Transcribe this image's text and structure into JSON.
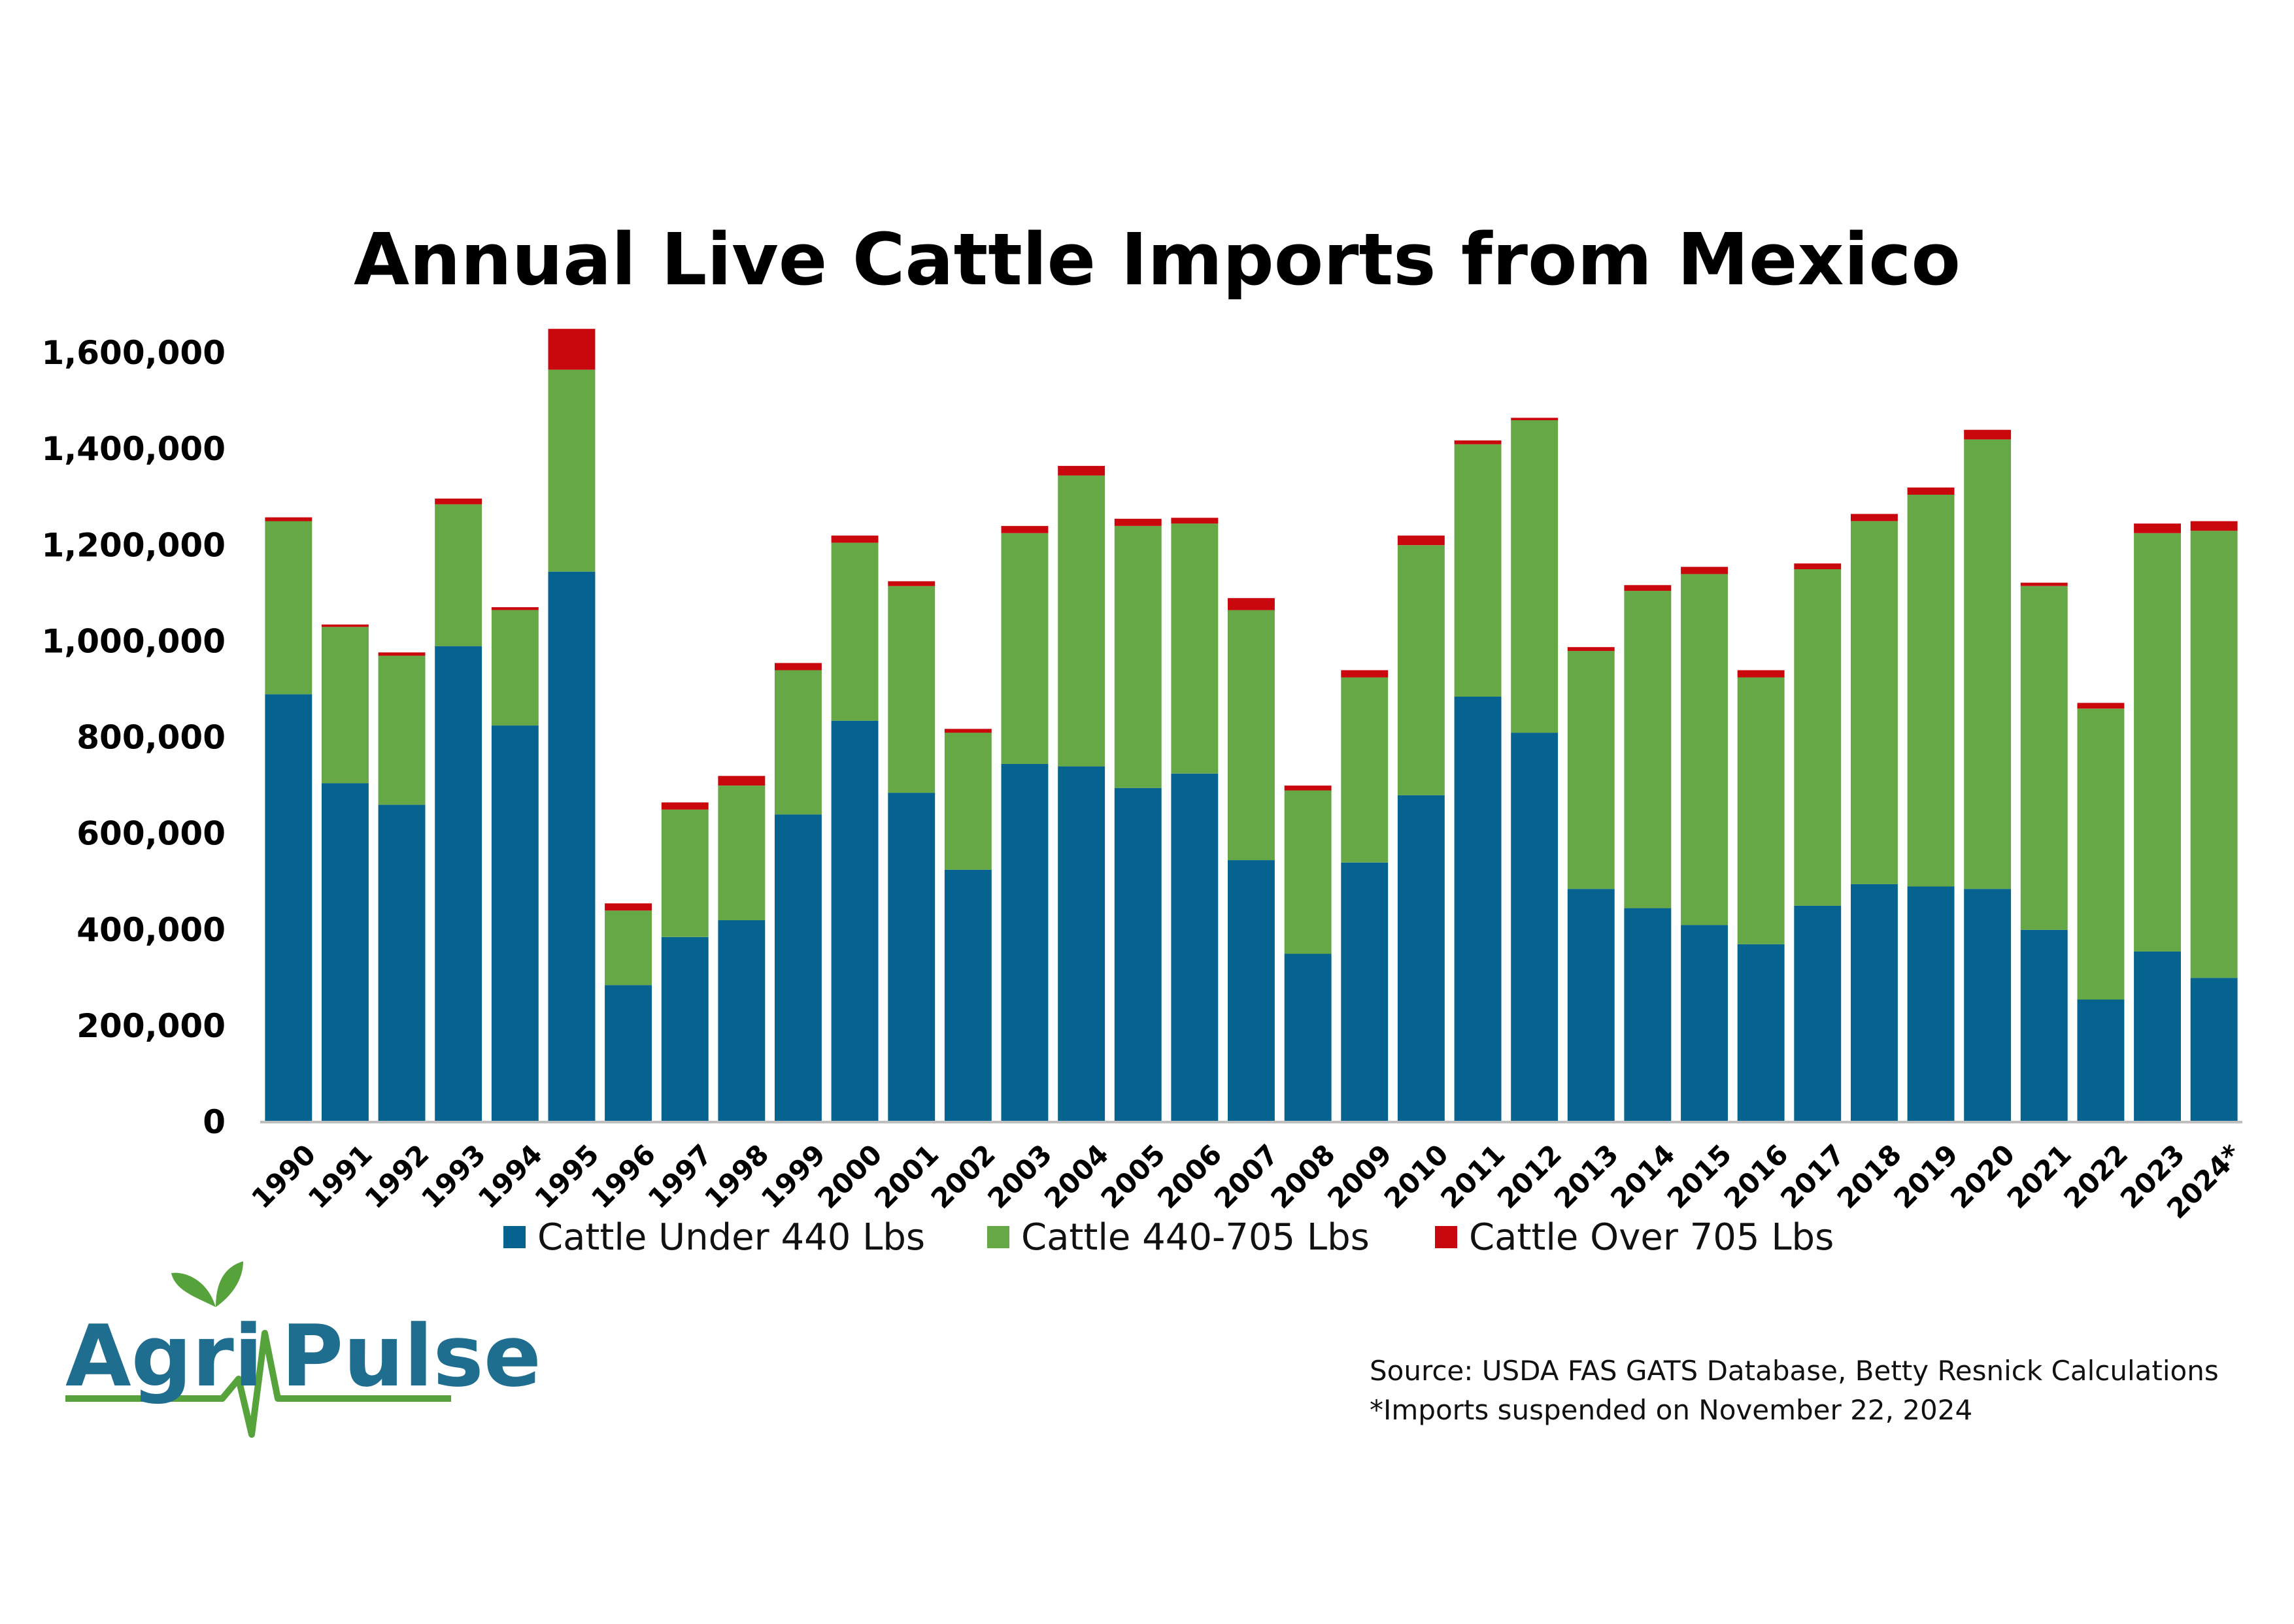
{
  "colors": {
    "under440": "#06628f",
    "mid": "#66a845",
    "over705": "#c9080e",
    "axis": "#bfbfbf",
    "logo_blue": "#1f6d8f",
    "logo_green": "#56a23b"
  },
  "logo": {
    "brand": "Agri Pulse",
    "icon": "leaf-pulse-icon"
  },
  "source": {
    "line1": "Source: USDA FAS GATS Database, Betty Resnick Calculations",
    "line2": "*Imports suspended on November 22, 2024"
  },
  "chart_data": {
    "type": "bar",
    "stacked": true,
    "title": "Annual Live Cattle Imports from Mexico",
    "xlabel": "",
    "ylabel": "",
    "ylim": [
      0,
      1600000
    ],
    "yticks": [
      "0",
      "200,000",
      "400,000",
      "600,000",
      "800,000",
      "1,000,000",
      "1,200,000",
      "1,400,000",
      "1,600,000"
    ],
    "legend_position": "bottom",
    "grid": false,
    "categories": [
      "1990",
      "1991",
      "1992",
      "1993",
      "1994",
      "1995",
      "1996",
      "1997",
      "1998",
      "1999",
      "2000",
      "2001",
      "2002",
      "2003",
      "2004",
      "2005",
      "2006",
      "2007",
      "2008",
      "2009",
      "2010",
      "2011",
      "2012",
      "2013",
      "2014",
      "2015",
      "2016",
      "2017",
      "2018",
      "2019",
      "2020",
      "2021",
      "2022",
      "2023",
      "2024*"
    ],
    "series": [
      {
        "name": "Cattle Under 440 Lbs",
        "color": "#06628f",
        "values": [
          890000,
          705000,
          660000,
          990000,
          825000,
          1145000,
          285000,
          385000,
          420000,
          640000,
          835000,
          685000,
          525000,
          745000,
          740000,
          695000,
          725000,
          545000,
          350000,
          540000,
          680000,
          885000,
          810000,
          485000,
          445000,
          410000,
          370000,
          450000,
          495000,
          490000,
          485000,
          400000,
          255000,
          355000,
          300000
        ]
      },
      {
        "name": "Cattle 440-705 Lbs",
        "color": "#66a845",
        "values": [
          360000,
          325000,
          310000,
          295000,
          240000,
          420000,
          155000,
          265000,
          280000,
          300000,
          370000,
          430000,
          285000,
          480000,
          605000,
          545000,
          520000,
          520000,
          340000,
          385000,
          520000,
          525000,
          650000,
          495000,
          660000,
          730000,
          555000,
          700000,
          755000,
          815000,
          935000,
          715000,
          605000,
          870000,
          930000
        ]
      },
      {
        "name": "Cattle Over 705 Lbs",
        "color": "#c9080e",
        "values": [
          8000,
          5000,
          7000,
          12000,
          6000,
          85000,
          15000,
          15000,
          20000,
          15000,
          15000,
          10000,
          8000,
          15000,
          20000,
          15000,
          12000,
          25000,
          10000,
          15000,
          20000,
          8000,
          5000,
          8000,
          12000,
          15000,
          15000,
          12000,
          15000,
          15000,
          20000,
          7000,
          12000,
          20000,
          20000
        ]
      }
    ]
  }
}
